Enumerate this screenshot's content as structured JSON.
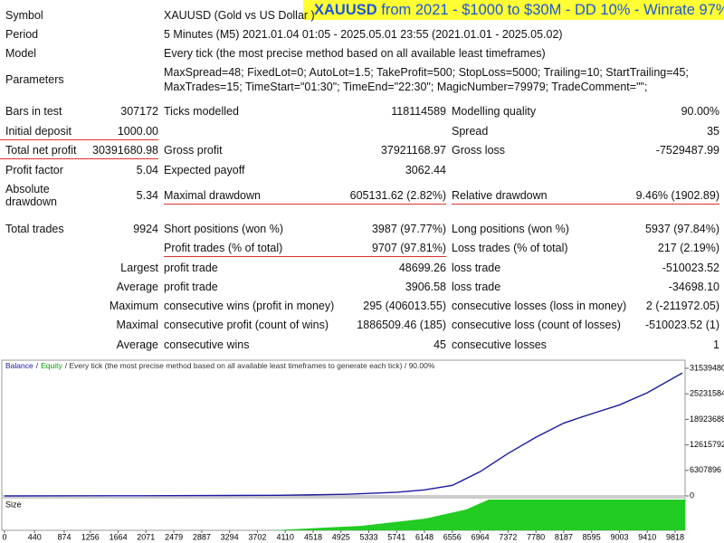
{
  "banner": {
    "symbol": "XAUUSD",
    "text": "from 2021 - $1000 to $30M - DD 10% - Winrate 97%"
  },
  "header": [
    {
      "label": "Symbol",
      "value": "XAUUSD (Gold vs US Dollar )"
    },
    {
      "label": "Period",
      "value": "5 Minutes (M5) 2021.01.04 01:05 - 2025.05.01 23:55 (2021.01.01 - 2025.05.02)"
    },
    {
      "label": "Model",
      "value": "Every tick (the most precise method based on all available least timeframes)"
    },
    {
      "label": "Parameters",
      "value": [
        "MaxSpread=48; FixedLot=0; AutoLot=1.5; TakeProfit=500; StopLoss=5000; Trailing=10; StartTrailing=45;",
        "MaxTrades=15; TimeStart=\"01:30\"; TimeEnd=\"22:30\"; MagicNumber=79979; TradeComment=\"\";"
      ]
    }
  ],
  "stats": [
    [
      "Bars in test",
      "307172",
      "Ticks modelled",
      "118114589",
      "Modelling quality",
      "90.00%"
    ],
    [
      "Initial deposit",
      "1000.00",
      null,
      null,
      "Spread",
      "35"
    ],
    [
      "Total net profit",
      "30391680.98",
      "Gross profit",
      "37921168.97",
      "Gross loss",
      "-7529487.99"
    ],
    [
      "Profit factor",
      "5.04",
      "Expected payoff",
      "3062.44",
      null,
      null
    ],
    [
      "Absolute drawdown",
      "5.34",
      "Maximal drawdown",
      "605131.62 (2.82%)",
      "Relative drawdown",
      "9.46% (1902.89)"
    ],
    [
      "Total trades",
      "9924",
      "Short positions (won %)",
      "3987 (97.77%)",
      "Long positions (won %)",
      "5937 (97.84%)"
    ],
    [
      null,
      null,
      "Profit trades (% of total)",
      "9707 (97.81%)",
      "Loss trades (% of total)",
      "217 (2.19%)"
    ],
    [
      null,
      "Largest",
      "profit trade",
      "48699.26",
      "loss trade",
      "-510023.52"
    ],
    [
      null,
      "Average",
      "profit trade",
      "3906.58",
      "loss trade",
      "-34698.10"
    ],
    [
      null,
      "Maximum",
      "consecutive wins (profit in money)",
      "295 (406013.55)",
      "consecutive losses (loss in money)",
      "2 (-211972.05)"
    ],
    [
      null,
      "Maximal",
      "consecutive profit (count of wins)",
      "1886509.46 (185)",
      "consecutive loss (count of losses)",
      "-510023.52 (1)"
    ],
    [
      null,
      "Average",
      "consecutive wins",
      "45",
      "consecutive losses",
      "1"
    ]
  ],
  "chart_data": {
    "type": "line",
    "legend_separator": "/",
    "legend_text": "/ Every tick (the most precise method based on all available least timeframes to generate each tick) / 90.00%",
    "equity_label": {
      "name": "Equity",
      "color": "#00a000"
    },
    "size_label": "Size",
    "x": [
      0,
      2000,
      4000,
      5000,
      5741,
      6148,
      6556,
      6964,
      7372,
      7780,
      8187,
      8450,
      8595,
      9003,
      9410,
      9924
    ],
    "series": [
      {
        "name": "Balance",
        "color": "#1a1aa0",
        "values": [
          1000,
          40000,
          150000,
          400000,
          900000,
          1500000,
          2600000,
          6000000,
          10500000,
          14500000,
          18000000,
          19500000,
          20300000,
          22500000,
          25500000,
          30392681
        ]
      }
    ],
    "xlim": [
      0,
      9924
    ],
    "xticks": [
      0,
      440,
      874,
      1256,
      1664,
      2071,
      2479,
      2887,
      3294,
      3702,
      4110,
      4518,
      4925,
      5333,
      5741,
      6148,
      6556,
      6964,
      7372,
      7780,
      8187,
      8595,
      9003,
      9410,
      9818
    ],
    "ylim": [
      0,
      31539480
    ],
    "yticks": [
      0,
      6307896,
      12615792,
      18923688,
      25231584,
      31539480
    ]
  }
}
